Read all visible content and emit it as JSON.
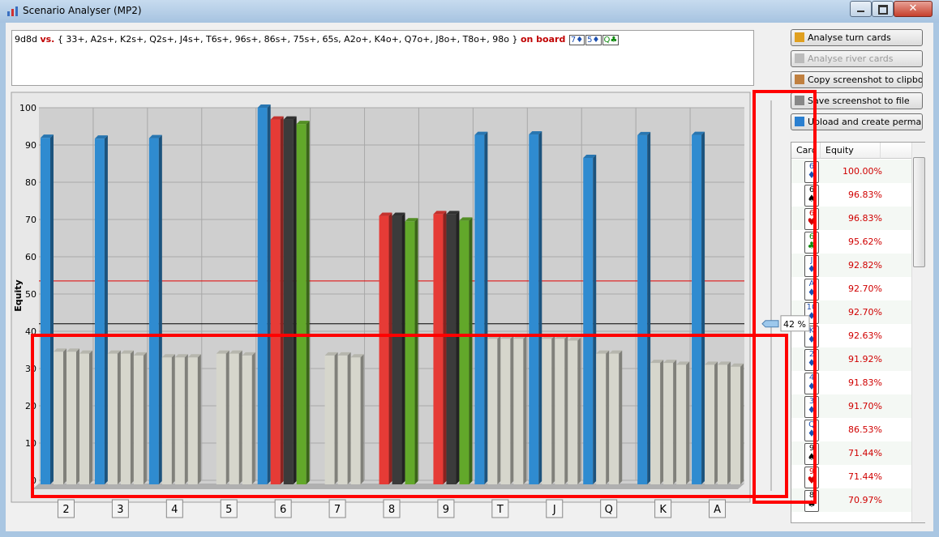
{
  "window": {
    "title": "Scenario Analyser (MP2)"
  },
  "scenario": {
    "hero": "9d8d",
    "vs": "vs.",
    "range": "{ 33+, A2s+, K2s+, Q2s+, J4s+, T6s+, 96s+, 86s+, 75s+, 65s, A2o+, K4o+, Q7o+, J8o+, T8o+, 98o }",
    "board_label": "on board",
    "board": [
      {
        "rank": "7",
        "suit": "♦"
      },
      {
        "rank": "5",
        "suit": "♦"
      },
      {
        "rank": "Q",
        "suit": "♣"
      }
    ]
  },
  "buttons": [
    "Analyse turn cards",
    "Analyse river cards",
    "Copy screenshot to clipboard",
    "Save screenshot to file",
    "Upload and create permalink"
  ],
  "chart_data": {
    "type": "bar",
    "y_label": "Equity",
    "categories": [
      "2",
      "3",
      "4",
      "5",
      "6",
      "7",
      "8",
      "9",
      "T",
      "J",
      "Q",
      "K",
      "A"
    ],
    "series": [
      {
        "name": "♦",
        "color": "#2f8bd0",
        "values": [
          91.92,
          91.7,
          91.83,
          null,
          100.0,
          null,
          null,
          null,
          92.7,
          92.82,
          86.53,
          92.63,
          92.7
        ]
      },
      {
        "name": "♥",
        "color": "#e63b36",
        "values": [
          34.5,
          34,
          33,
          34,
          96.83,
          33.5,
          70.97,
          71.44,
          38,
          38,
          34,
          31.5,
          31
        ]
      },
      {
        "name": "♠",
        "color": "#3b3b3b",
        "values": [
          34.5,
          34,
          33,
          34,
          96.83,
          33.5,
          70.97,
          71.44,
          38,
          38,
          34,
          31.5,
          31
        ]
      },
      {
        "name": "♣",
        "color": "#62a82a",
        "values": [
          34,
          33.5,
          33,
          33.5,
          95.62,
          33,
          69.5,
          69.7,
          38,
          37.5,
          null,
          31,
          30.5
        ]
      }
    ],
    "ylim": [
      0,
      100
    ],
    "yticks": [
      0,
      10,
      20,
      30,
      40,
      50,
      60,
      70,
      80,
      90,
      100
    ],
    "grid": true,
    "threshold": 42,
    "threshold_label": "42 %",
    "dim_color": "#d6d6cc",
    "reference_line": {
      "value": 53.5,
      "color": "#e00000"
    }
  },
  "table": {
    "headers": [
      "Card",
      "Equity"
    ],
    "rows": [
      [
        "6",
        "♦",
        "100.00%"
      ],
      [
        "6",
        "♠",
        "96.83%"
      ],
      [
        "6",
        "♥",
        "96.83%"
      ],
      [
        "6",
        "♣",
        "95.62%"
      ],
      [
        "J",
        "♦",
        "92.82%"
      ],
      [
        "A",
        "♦",
        "92.70%"
      ],
      [
        "10",
        "♦",
        "92.70%"
      ],
      [
        "K",
        "♦",
        "92.63%"
      ],
      [
        "2",
        "♦",
        "91.92%"
      ],
      [
        "4",
        "♦",
        "91.83%"
      ],
      [
        "3",
        "♦",
        "91.70%"
      ],
      [
        "Q",
        "♦",
        "86.53%"
      ],
      [
        "9",
        "♠",
        "71.44%"
      ],
      [
        "9",
        "♥",
        "71.44%"
      ],
      [
        "8",
        "♠",
        "70.97%"
      ]
    ]
  }
}
